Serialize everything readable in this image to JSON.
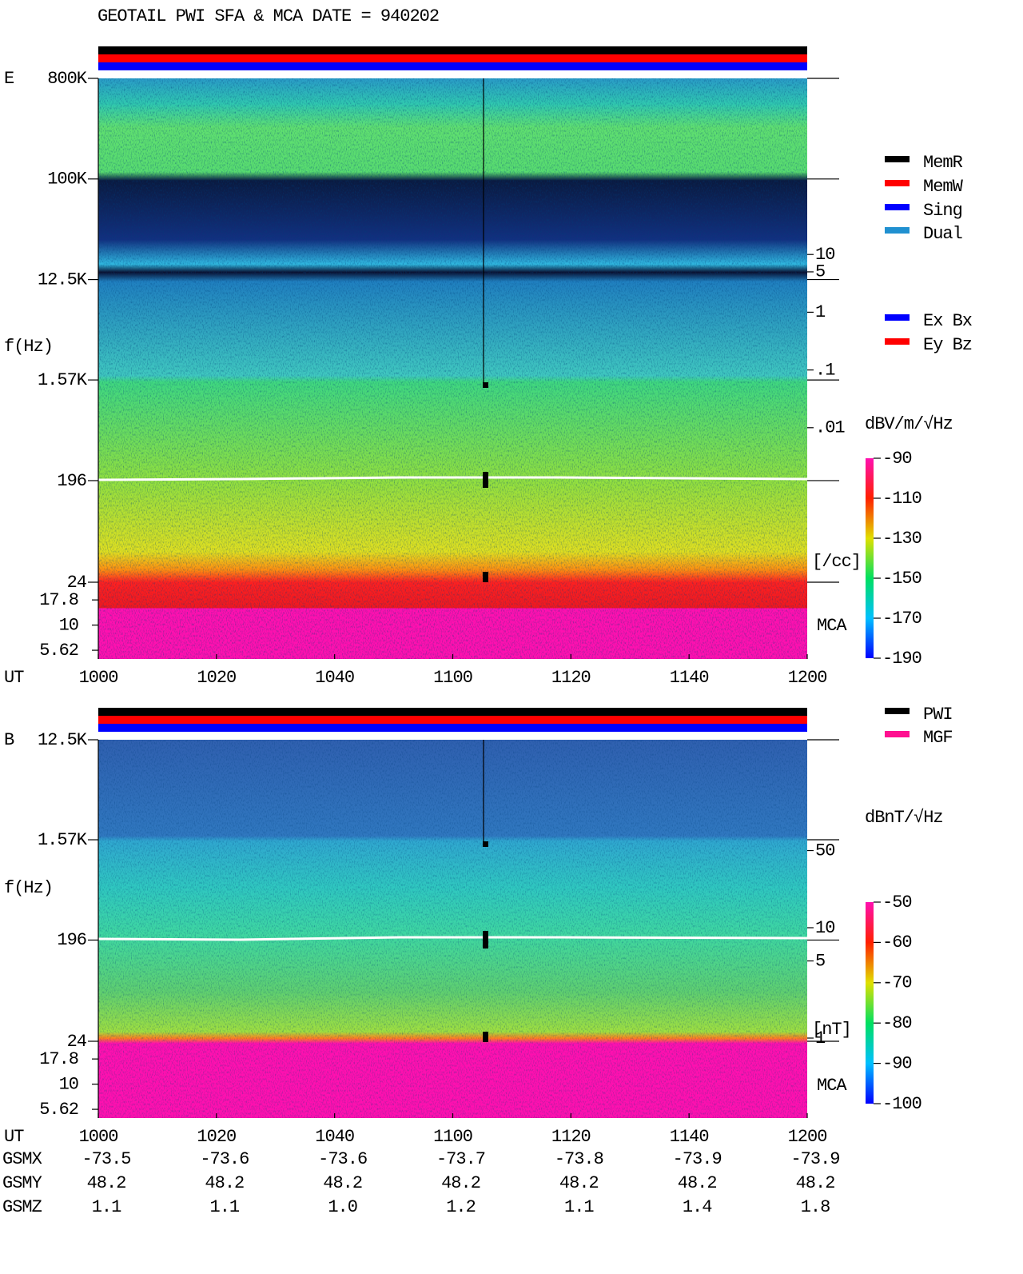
{
  "title": "GEOTAIL  PWI SFA & MCA   DATE = 940202",
  "chart_data": [
    {
      "type": "spectrogram",
      "panel_label": "E",
      "y_label": "f(Hz)",
      "x_label": "UT",
      "log_y": true,
      "ylim": [
        24,
        800000
      ],
      "yticks": [
        {
          "value": 800000,
          "label": "800K"
        },
        {
          "value": 100000,
          "label": "100K"
        },
        {
          "value": 12500,
          "label": "12.5K"
        },
        {
          "value": 1570,
          "label": "1.57K"
        },
        196,
        24
      ],
      "mca_label": "MCA",
      "mca_ylim": [
        4.6,
        26.7
      ],
      "mca_yticks": [
        17.8,
        10,
        5.62
      ],
      "xlim": [
        0,
        120
      ],
      "xticks": [
        {
          "value": 0,
          "label": "1000"
        },
        {
          "value": 20,
          "label": "1020"
        },
        {
          "value": 40,
          "label": "1040"
        },
        {
          "value": 60,
          "label": "1100"
        },
        {
          "value": 80,
          "label": "1120"
        },
        {
          "value": 100,
          "label": "1140"
        },
        {
          "value": 120,
          "label": "1200"
        }
      ],
      "density_label": "[/cc]",
      "density_color": "#ff0000",
      "density_lim": [
        0.001,
        100
      ],
      "density_ticks": [
        10,
        5,
        1,
        {
          "value": 0.1,
          "label": ".1"
        },
        {
          "value": 0.01,
          "label": ".01"
        }
      ],
      "colorbar": {
        "label": "dBV/m/√Hz",
        "lim": [
          -190,
          -90
        ],
        "ticks": [
          -90,
          -110,
          -130,
          -150,
          -170,
          -190
        ]
      },
      "legends": [
        {
          "series": [
            {
              "name": "MemR",
              "color": "#000000"
            },
            {
              "name": "MemW",
              "color": "#ff0000"
            },
            {
              "name": "Sing",
              "color": "#0000ff"
            },
            {
              "name": "Dual",
              "color": "#2090d0"
            }
          ]
        },
        {
          "series": [
            {
              "name": "Ex Bx",
              "color": "#0000ff"
            },
            {
              "name": "Ey Bz",
              "color": "#ff0000"
            }
          ]
        }
      ]
    },
    {
      "type": "spectrogram",
      "panel_label": "B",
      "y_label": "f(Hz)",
      "x_label": "UT",
      "log_y": true,
      "ylim": [
        24,
        12500
      ],
      "yticks": [
        {
          "value": 12500,
          "label": "12.5K"
        },
        {
          "value": 1570,
          "label": "1.57K"
        },
        196,
        24
      ],
      "mca_label": "MCA",
      "mca_ylim": [
        4.6,
        26.7
      ],
      "mca_yticks": [
        17.8,
        10,
        5.62
      ],
      "xlim": [
        0,
        120
      ],
      "xticks": [
        {
          "value": 0,
          "label": "1000"
        },
        {
          "value": 20,
          "label": "1020"
        },
        {
          "value": 40,
          "label": "1040"
        },
        {
          "value": 60,
          "label": "1100"
        },
        {
          "value": 80,
          "label": "1120"
        },
        {
          "value": 100,
          "label": "1140"
        },
        {
          "value": 120,
          "label": "1200"
        }
      ],
      "density_label": "[nT]",
      "density_color": "#ff0000",
      "density_lim": [
        1,
        100
      ],
      "density_ticks": [
        50,
        10,
        5,
        1
      ],
      "colorbar": {
        "label": "dBnT/√Hz",
        "lim": [
          -100,
          -50
        ],
        "ticks": [
          -50,
          -60,
          -70,
          -80,
          -90,
          -100
        ]
      },
      "legends": [
        {
          "series": [
            {
              "name": "PWI",
              "color": "#000000"
            },
            {
              "name": "MGF",
              "color": "#ff1090"
            }
          ]
        }
      ]
    }
  ],
  "orbit": {
    "rows": [
      {
        "label": "GSMX",
        "values": [
          "-73.5",
          "-73.6",
          "-73.6",
          "-73.7",
          "-73.8",
          "-73.9",
          "-73.9"
        ]
      },
      {
        "label": "GSMY",
        "values": [
          "48.2",
          "48.2",
          "48.2",
          "48.2",
          "48.2",
          "48.2",
          "48.2"
        ]
      },
      {
        "label": "GSMZ",
        "values": [
          "1.1",
          "1.1",
          "1.0",
          "1.2",
          "1.1",
          "1.4",
          "1.8"
        ]
      }
    ]
  }
}
